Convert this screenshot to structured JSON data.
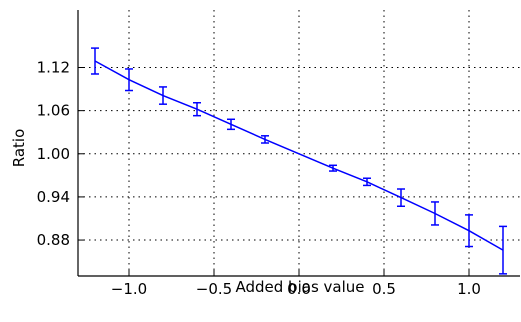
{
  "chart_data": {
    "type": "line",
    "title": "",
    "xlabel": "Added bias value",
    "ylabel": "Ratio",
    "xlim": [
      -1.3,
      1.3
    ],
    "ylim": [
      0.83,
      1.2
    ],
    "xticks": [
      -1.0,
      -0.5,
      0.0,
      0.5,
      1.0
    ],
    "xtick_labels": [
      "−1.0",
      "−0.5",
      "0.0",
      "0.5",
      "1.0"
    ],
    "yticks": [
      0.88,
      0.94,
      1.0,
      1.06,
      1.12
    ],
    "ytick_labels": [
      "0.88",
      "0.94",
      "1.00",
      "1.06",
      "1.12"
    ],
    "grid": true,
    "color": "#0000ff",
    "series": [
      {
        "x": [
          -1.2,
          -1.0,
          -0.8,
          -0.6,
          -0.4,
          -0.2,
          0.0,
          0.2,
          0.4,
          0.6,
          0.8,
          1.0,
          1.2
        ],
        "y": [
          1.129,
          1.103,
          1.081,
          1.062,
          1.041,
          1.02,
          1.0,
          0.98,
          0.961,
          0.939,
          0.917,
          0.893,
          0.866
        ],
        "error": [
          0.018,
          0.015,
          0.012,
          0.009,
          0.007,
          0.005,
          0.0,
          0.004,
          0.005,
          0.012,
          0.016,
          0.022,
          0.033
        ]
      }
    ]
  }
}
